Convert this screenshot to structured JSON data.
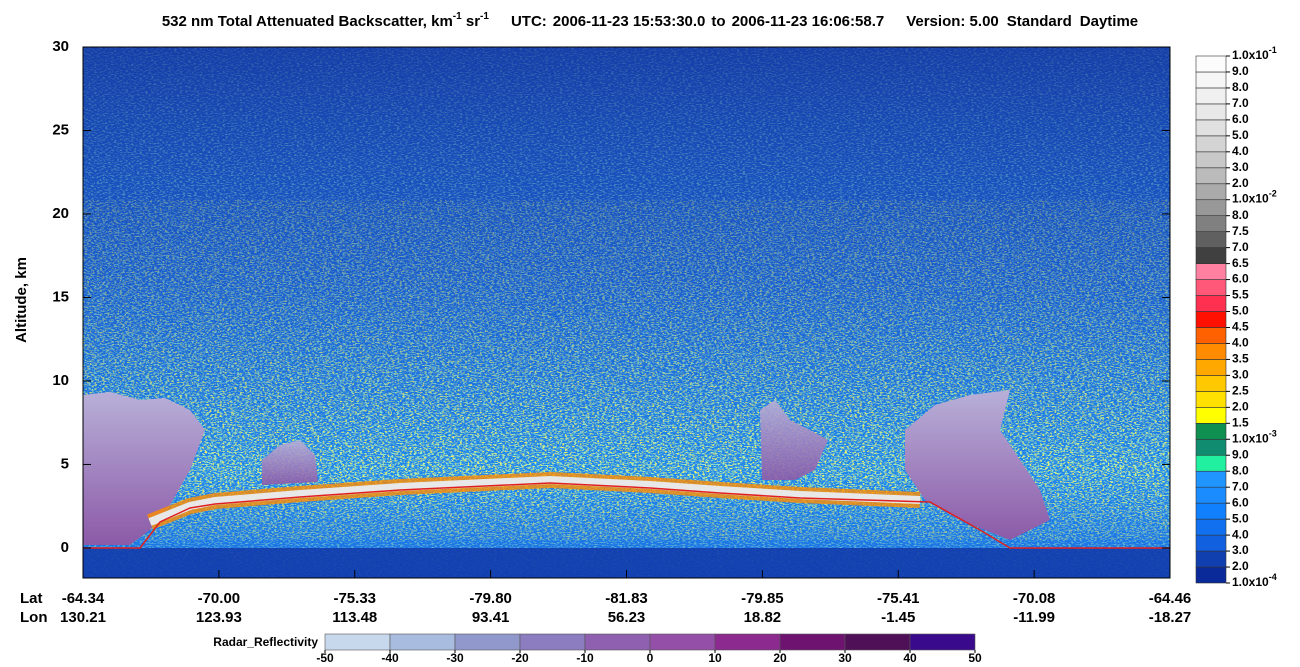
{
  "chart_data": {
    "type": "heatmap",
    "title_parts": [
      {
        "text": "532 nm Total Attenuated Backscatter, km"
      },
      {
        "text": "-1",
        "sup": true
      },
      {
        "text": " sr"
      },
      {
        "text": "-1",
        "sup": true
      }
    ],
    "utc_label": "UTC:",
    "start_time": "2006-11-23 15:53:30.0",
    "to_label": "to",
    "end_time": "2006-11-23 16:06:58.7",
    "version": "Version: 5.00",
    "product": "Standard",
    "daytime": "Daytime",
    "ylabel": "Altitude, km",
    "ylim": [
      -1.8,
      30
    ],
    "yticks": [
      0,
      5,
      10,
      15,
      20,
      25,
      30
    ],
    "lat_label": "Lat",
    "lon_label": "Lon",
    "lat": [
      "-64.34",
      "-70.00",
      "-75.33",
      "-79.80",
      "-81.83",
      "-79.85",
      "-75.41",
      "-70.08",
      "-64.46"
    ],
    "lon": [
      "130.21",
      "123.93",
      "113.48",
      "93.41",
      "56.23",
      "18.82",
      "-1.45",
      "-11.99",
      "-18.27"
    ],
    "colorbar": {
      "labels": [
        {
          "text": "1.0x10",
          "sup": "-4"
        },
        "2.0",
        "3.0",
        "4.0",
        "5.0",
        "6.0",
        "7.0",
        "8.0",
        "9.0",
        {
          "text": "1.0x10",
          "sup": "-3"
        },
        "1.5",
        "2.0",
        "2.5",
        "3.0",
        "3.5",
        "4.0",
        "4.5",
        "5.0",
        "5.5",
        "6.0",
        "6.5",
        "7.0",
        "7.5",
        "8.0",
        {
          "text": "1.0x10",
          "sup": "-2"
        },
        "2.0",
        "3.0",
        "4.0",
        "5.0",
        "6.0",
        "7.0",
        "8.0",
        "9.0",
        {
          "text": "1.0x10",
          "sup": "-1"
        }
      ],
      "colors": [
        "#0a2a9a",
        "#1040b0",
        "#1060e0",
        "#1070f0",
        "#1080ff",
        "#1a8cff",
        "#2094ff",
        "#20f0a0",
        "#108c70",
        "#109050",
        "#ffff00",
        "#ffe000",
        "#ffc800",
        "#ffa800",
        "#ff8c00",
        "#ff6000",
        "#ff1000",
        "#ff3050",
        "#ff5878",
        "#ff80a0",
        "#404040",
        "#606060",
        "#808080",
        "#989898",
        "#aaaaaa",
        "#bbbbbb",
        "#c8c8c8",
        "#d4d4d4",
        "#e0e0e0",
        "#e8e8e8",
        "#f0f0f0",
        "#f6f6f6",
        "#fcfcfc"
      ]
    },
    "radar": {
      "label": "Radar_Reflectivity",
      "lim": [
        -50,
        50
      ],
      "ticks": [
        -50,
        -40,
        -30,
        -20,
        -10,
        0,
        10,
        20,
        30,
        40,
        50
      ],
      "colors": [
        "#c8d8ec",
        "#a8bce0",
        "#9098cc",
        "#8c7cc0",
        "#9060b0",
        "#9450a8",
        "#8c2a90",
        "#6e1470",
        "#501058",
        "#3a0a8c"
      ]
    }
  }
}
